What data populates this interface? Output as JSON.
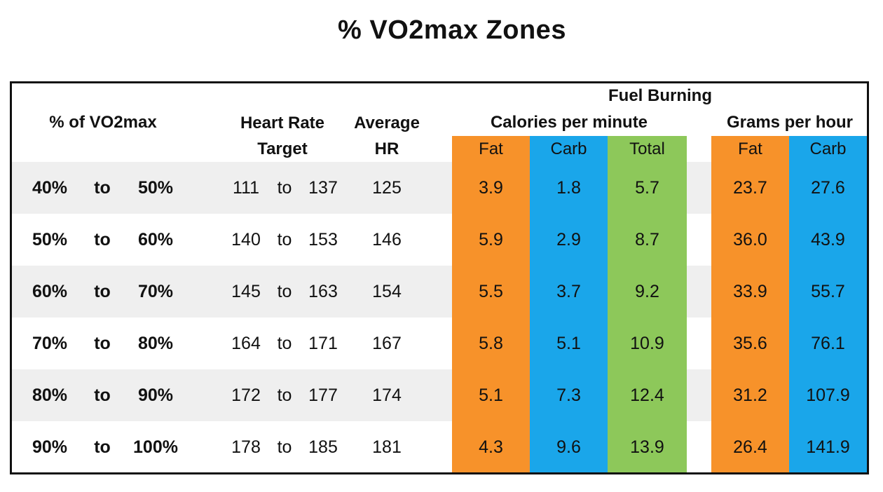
{
  "title": "% VO2max Zones",
  "header": {
    "fuel_burning": "Fuel Burning",
    "pct_vo2max": "% of VO2max",
    "heart_rate_line1": "Heart Rate",
    "heart_rate_line2": "Target",
    "avg_hr_line1": "Average",
    "avg_hr_line2": "HR",
    "calories_group": "Calories per minute",
    "grams_group": "Grams per hour",
    "cal_fat": "Fat",
    "cal_carb": "Carb",
    "cal_total": "Total",
    "g_fat": "Fat",
    "g_carb": "Carb"
  },
  "colors": {
    "fat": "#f7922a",
    "carb": "#1aa6ea",
    "total": "#8dc85a",
    "row_shade": "#efefef"
  },
  "rows": [
    {
      "vo2_low": "40%",
      "to1": "to",
      "vo2_high": "50%",
      "hr_low": "111",
      "to2": "to",
      "hr_high": "137",
      "avg_hr": "125",
      "cal_fat": "3.9",
      "cal_carb": "1.8",
      "cal_total": "5.7",
      "g_fat": "23.7",
      "g_carb": "27.6"
    },
    {
      "vo2_low": "50%",
      "to1": "to",
      "vo2_high": "60%",
      "hr_low": "140",
      "to2": "to",
      "hr_high": "153",
      "avg_hr": "146",
      "cal_fat": "5.9",
      "cal_carb": "2.9",
      "cal_total": "8.7",
      "g_fat": "36.0",
      "g_carb": "43.9"
    },
    {
      "vo2_low": "60%",
      "to1": "to",
      "vo2_high": "70%",
      "hr_low": "145",
      "to2": "to",
      "hr_high": "163",
      "avg_hr": "154",
      "cal_fat": "5.5",
      "cal_carb": "3.7",
      "cal_total": "9.2",
      "g_fat": "33.9",
      "g_carb": "55.7"
    },
    {
      "vo2_low": "70%",
      "to1": "to",
      "vo2_high": "80%",
      "hr_low": "164",
      "to2": "to",
      "hr_high": "171",
      "avg_hr": "167",
      "cal_fat": "5.8",
      "cal_carb": "5.1",
      "cal_total": "10.9",
      "g_fat": "35.6",
      "g_carb": "76.1"
    },
    {
      "vo2_low": "80%",
      "to1": "to",
      "vo2_high": "90%",
      "hr_low": "172",
      "to2": "to",
      "hr_high": "177",
      "avg_hr": "174",
      "cal_fat": "5.1",
      "cal_carb": "7.3",
      "cal_total": "12.4",
      "g_fat": "31.2",
      "g_carb": "107.9"
    },
    {
      "vo2_low": "90%",
      "to1": "to",
      "vo2_high": "100%",
      "hr_low": "178",
      "to2": "to",
      "hr_high": "185",
      "avg_hr": "181",
      "cal_fat": "4.3",
      "cal_carb": "9.6",
      "cal_total": "13.9",
      "g_fat": "26.4",
      "g_carb": "141.9"
    }
  ]
}
